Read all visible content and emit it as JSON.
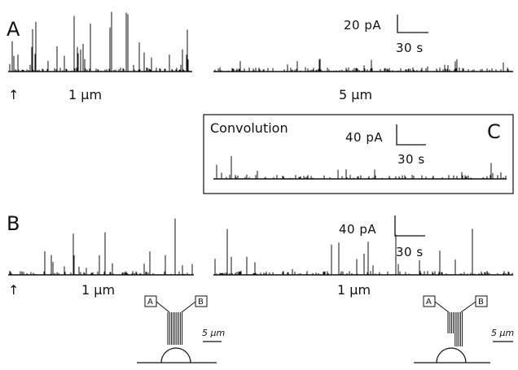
{
  "panels": {
    "a": {
      "letter": "A",
      "left_label": "1 μm",
      "right_label": "5 μm",
      "scale_current": "20 pA",
      "scale_time": "30 s",
      "arrow": "↑"
    },
    "b": {
      "letter": "B",
      "left_label": "1 μm",
      "right_label": "1 μm",
      "scale_current": "40 pA",
      "scale_time": "30 s",
      "arrow": "↑"
    },
    "c": {
      "letter": "C",
      "title": "Convolution",
      "scale_current": "40 pA",
      "scale_time": "30 s"
    }
  },
  "schematics": {
    "left": {
      "box_a": "A",
      "box_b": "B",
      "scale": "5 μm"
    },
    "right": {
      "box_a": "A",
      "box_b": "B",
      "scale": "5 μm"
    }
  },
  "colors": {
    "ink": "#111111",
    "background": "#ffffff"
  }
}
